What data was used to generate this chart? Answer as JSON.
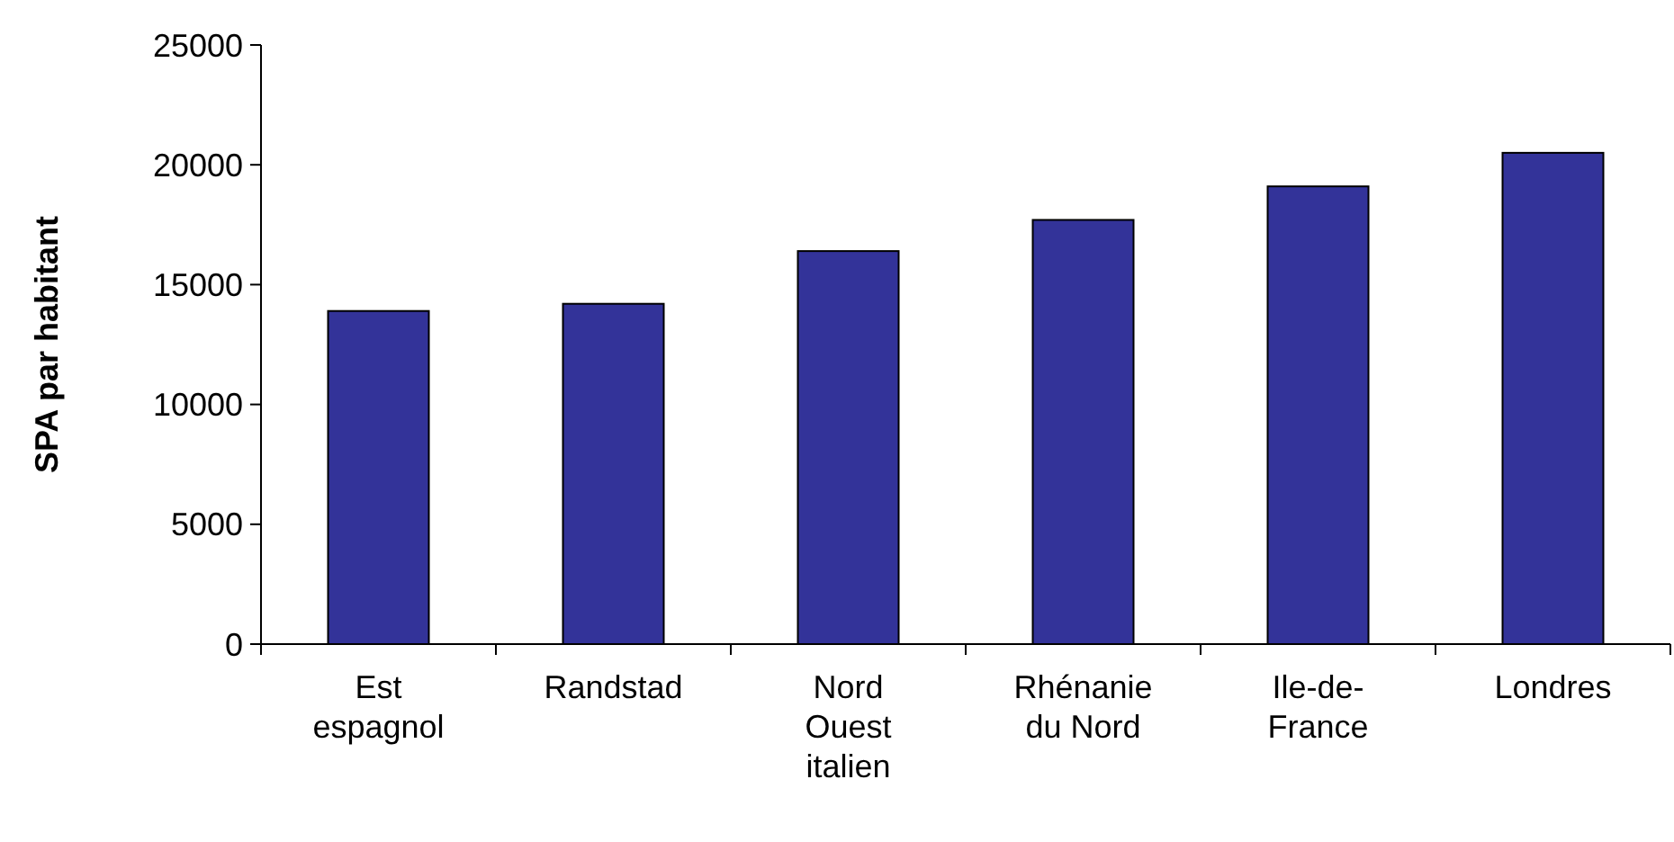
{
  "chart_data": {
    "type": "bar",
    "ylabel": "SPA par habitant",
    "categories": [
      "Est espagnol",
      "Randstad",
      "Nord Ouest italien",
      "Rhénanie du Nord",
      "Ile-de-France",
      "Londres"
    ],
    "values": [
      13900,
      14200,
      16400,
      17700,
      19100,
      20500
    ],
    "color": "#333399",
    "ylim": [
      0,
      25000
    ],
    "yticks": [
      0,
      5000,
      10000,
      15000,
      20000,
      25000
    ],
    "grid": false
  }
}
